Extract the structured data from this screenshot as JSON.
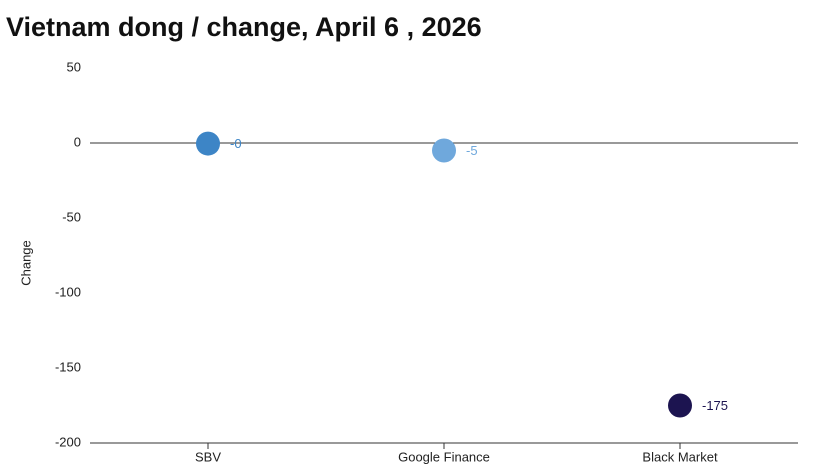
{
  "chart_data": {
    "type": "dot",
    "title": "Vietnam dong / change, April 6 , 2026",
    "y_label": "Change",
    "categories": [
      "SBV",
      "Google Finance",
      "Black Market"
    ],
    "values": [
      -0.4,
      -5,
      -175
    ],
    "value_labels": [
      "-0",
      "-5",
      "-175"
    ],
    "colors": [
      "#3d85c6",
      "#6fa8dc",
      "#1c1450"
    ],
    "ylim": [
      -200,
      50
    ],
    "yticks": [
      -200,
      -150,
      -100,
      -50,
      0,
      50
    ],
    "grid": false
  }
}
